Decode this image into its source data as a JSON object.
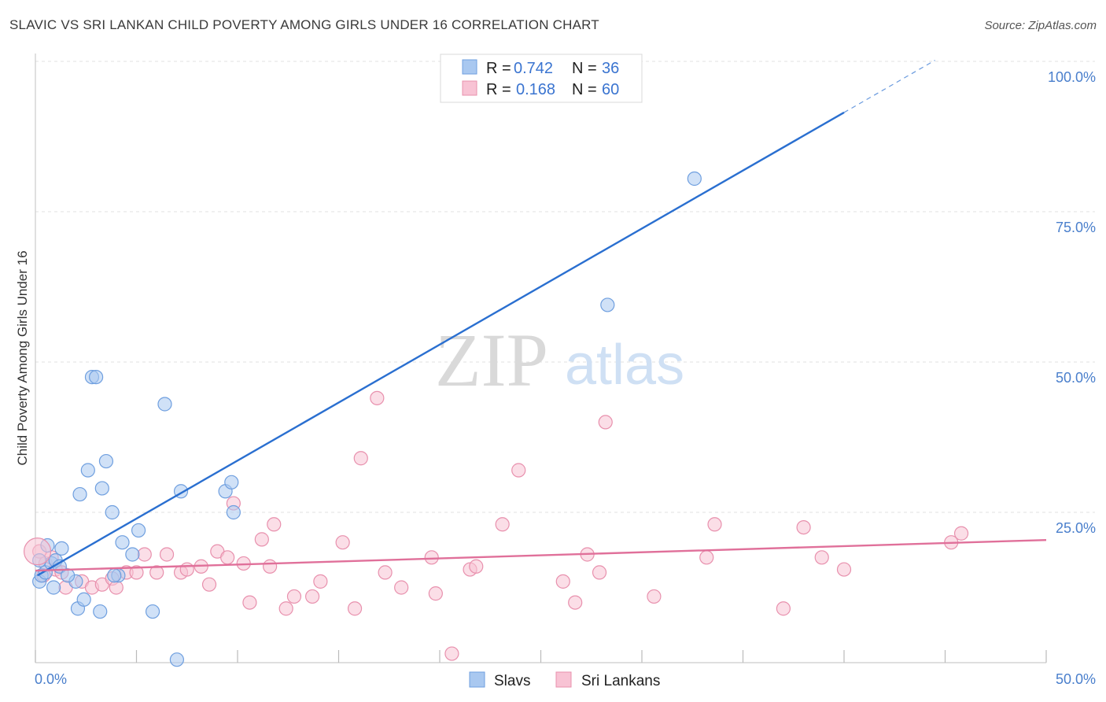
{
  "title": "SLAVIC VS SRI LANKAN CHILD POVERTY AMONG GIRLS UNDER 16 CORRELATION CHART",
  "source": "Source: ZipAtlas.com",
  "watermark": {
    "zip": "ZIP",
    "atlas": "atlas"
  },
  "legend": {
    "rows": [
      {
        "r_label": "R =",
        "r_value": "0.742",
        "n_label": "N =",
        "n_value": "36",
        "color": "#a9c8f0",
        "stroke": "#6f9fdf"
      },
      {
        "r_label": "R =",
        "r_value": "0.168",
        "n_label": "N =",
        "n_value": "60",
        "color": "#f8c3d4",
        "stroke": "#e890ad"
      }
    ]
  },
  "bottom_legend": [
    {
      "label": "Slavs",
      "color": "#a9c8f0",
      "stroke": "#6f9fdf"
    },
    {
      "label": "Sri Lankans",
      "color": "#f8c3d4",
      "stroke": "#e890ad"
    }
  ],
  "chart_data": {
    "type": "scatter",
    "title": "SLAVIC VS SRI LANKAN CHILD POVERTY AMONG GIRLS UNDER 16 CORRELATION CHART",
    "xlabel": "",
    "ylabel": "Child Poverty Among Girls Under 16",
    "xlim": [
      0,
      50
    ],
    "ylim": [
      0,
      100
    ],
    "x_tick_labels": [
      "0.0%",
      "50.0%"
    ],
    "y_tick_labels": [
      "100.0%",
      "75.0%",
      "50.0%",
      "25.0%"
    ],
    "y_tick_values": [
      100,
      75,
      50,
      25
    ],
    "grid": true,
    "series": [
      {
        "name": "Slavs",
        "color": "#6f9fdf",
        "fill": "#a9c8f0",
        "trend_color": "#2a6fd0",
        "trend": {
          "x0": 0.1,
          "y0": 14.5,
          "x1": 40,
          "y1": 91.5,
          "x_dash_end": 44.5
        },
        "points": [
          [
            0.2,
            13.5
          ],
          [
            0.3,
            14.5
          ],
          [
            0.5,
            15
          ],
          [
            0.8,
            16.5
          ],
          [
            1.0,
            17
          ],
          [
            1.3,
            19
          ],
          [
            0.6,
            19.5
          ],
          [
            1.2,
            16
          ],
          [
            2.0,
            13.5
          ],
          [
            0.9,
            12.5
          ],
          [
            2.1,
            9
          ],
          [
            2.4,
            10.5
          ],
          [
            2.8,
            47.5
          ],
          [
            3.0,
            47.5
          ],
          [
            2.2,
            28
          ],
          [
            2.6,
            32
          ],
          [
            3.3,
            29
          ],
          [
            3.5,
            33.5
          ],
          [
            3.8,
            25
          ],
          [
            4.3,
            20
          ],
          [
            4.8,
            18
          ],
          [
            5.1,
            22
          ],
          [
            6.4,
            43
          ],
          [
            7.2,
            28.5
          ],
          [
            9.4,
            28.5
          ],
          [
            9.7,
            30
          ],
          [
            9.8,
            25
          ],
          [
            4.1,
            14.5
          ],
          [
            3.2,
            8.5
          ],
          [
            5.8,
            8.5
          ],
          [
            7.0,
            0.5
          ],
          [
            28.3,
            59.5
          ],
          [
            32.6,
            80.5
          ],
          [
            0.2,
            17
          ],
          [
            1.6,
            14.5
          ],
          [
            3.9,
            14.5
          ]
        ]
      },
      {
        "name": "Sri Lankans",
        "color": "#e890ad",
        "fill": "#f8c3d4",
        "trend_color": "#e0709a",
        "trend": {
          "x0": 0,
          "y0": 15.3,
          "x1": 50,
          "y1": 20.4
        },
        "points": [
          [
            0.2,
            18.5
          ],
          [
            0.5,
            16.5
          ],
          [
            1.0,
            15.5
          ],
          [
            1.5,
            12.5
          ],
          [
            2.3,
            13.5
          ],
          [
            2.8,
            12.5
          ],
          [
            3.3,
            13
          ],
          [
            3.8,
            14
          ],
          [
            4.0,
            12.5
          ],
          [
            4.5,
            15
          ],
          [
            5.0,
            15
          ],
          [
            5.4,
            18
          ],
          [
            6.0,
            15
          ],
          [
            6.5,
            18
          ],
          [
            7.2,
            15
          ],
          [
            7.5,
            15.5
          ],
          [
            8.2,
            16
          ],
          [
            8.6,
            13
          ],
          [
            9.0,
            18.5
          ],
          [
            9.5,
            17.5
          ],
          [
            9.8,
            26.5
          ],
          [
            10.3,
            16.5
          ],
          [
            10.6,
            10
          ],
          [
            11.2,
            20.5
          ],
          [
            11.6,
            16
          ],
          [
            11.8,
            23
          ],
          [
            12.4,
            9
          ],
          [
            12.8,
            11
          ],
          [
            13.7,
            11
          ],
          [
            14.1,
            13.5
          ],
          [
            15.2,
            20
          ],
          [
            15.8,
            9
          ],
          [
            16.1,
            34
          ],
          [
            16.9,
            44
          ],
          [
            17.3,
            15
          ],
          [
            18.1,
            12.5
          ],
          [
            19.6,
            17.5
          ],
          [
            19.8,
            11.5
          ],
          [
            20.6,
            1.5
          ],
          [
            21.5,
            15.5
          ],
          [
            21.8,
            16
          ],
          [
            23.1,
            23
          ],
          [
            23.9,
            32
          ],
          [
            26.1,
            13.5
          ],
          [
            26.7,
            10
          ],
          [
            27.3,
            18
          ],
          [
            27.9,
            15
          ],
          [
            28.2,
            40
          ],
          [
            30.6,
            11
          ],
          [
            33.2,
            17.5
          ],
          [
            33.6,
            23
          ],
          [
            37.0,
            9
          ],
          [
            38.0,
            22.5
          ],
          [
            38.9,
            17.5
          ],
          [
            40.0,
            15.5
          ],
          [
            45.3,
            20
          ],
          [
            45.8,
            21.5
          ],
          [
            0.4,
            14.5
          ],
          [
            0.8,
            17.5
          ],
          [
            1.3,
            15
          ]
        ]
      }
    ]
  }
}
